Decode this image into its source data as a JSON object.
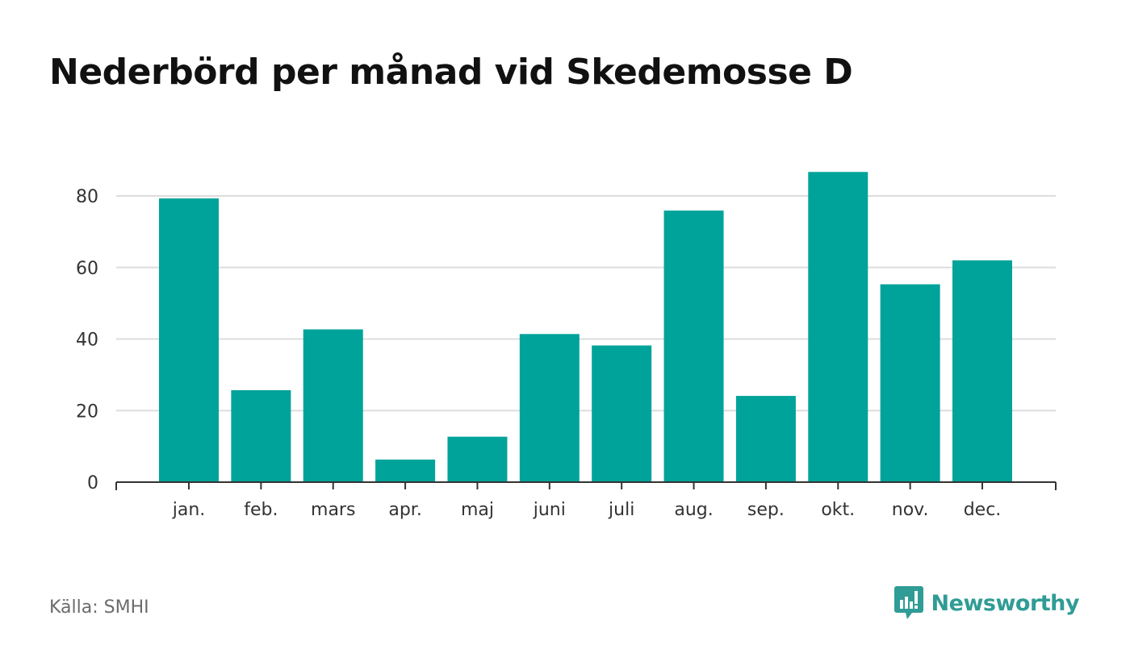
{
  "title": "Nederbörd per månad vid Skedemosse D",
  "source": "Källa: SMHI",
  "brand": {
    "name": "Newsworthy",
    "icon": "newsworthy-logo-icon"
  },
  "colors": {
    "bar": "#00a39a",
    "axis": "#333333",
    "grid": "#dddddd",
    "text": "#333333",
    "brand": "#2f9c95"
  },
  "chart_data": {
    "type": "bar",
    "categories": [
      "jan.",
      "feb.",
      "mars",
      "apr.",
      "maj",
      "juni",
      "juli",
      "aug.",
      "sep.",
      "okt.",
      "nov.",
      "dec."
    ],
    "values": [
      79.3,
      25.7,
      42.7,
      6.3,
      12.7,
      41.4,
      38.2,
      75.9,
      24.1,
      86.7,
      55.3,
      62.0
    ],
    "yticks": [
      0,
      20,
      40,
      60,
      80
    ],
    "ylim": [
      0,
      90
    ],
    "grid": true,
    "xlabel": "",
    "ylabel": ""
  }
}
